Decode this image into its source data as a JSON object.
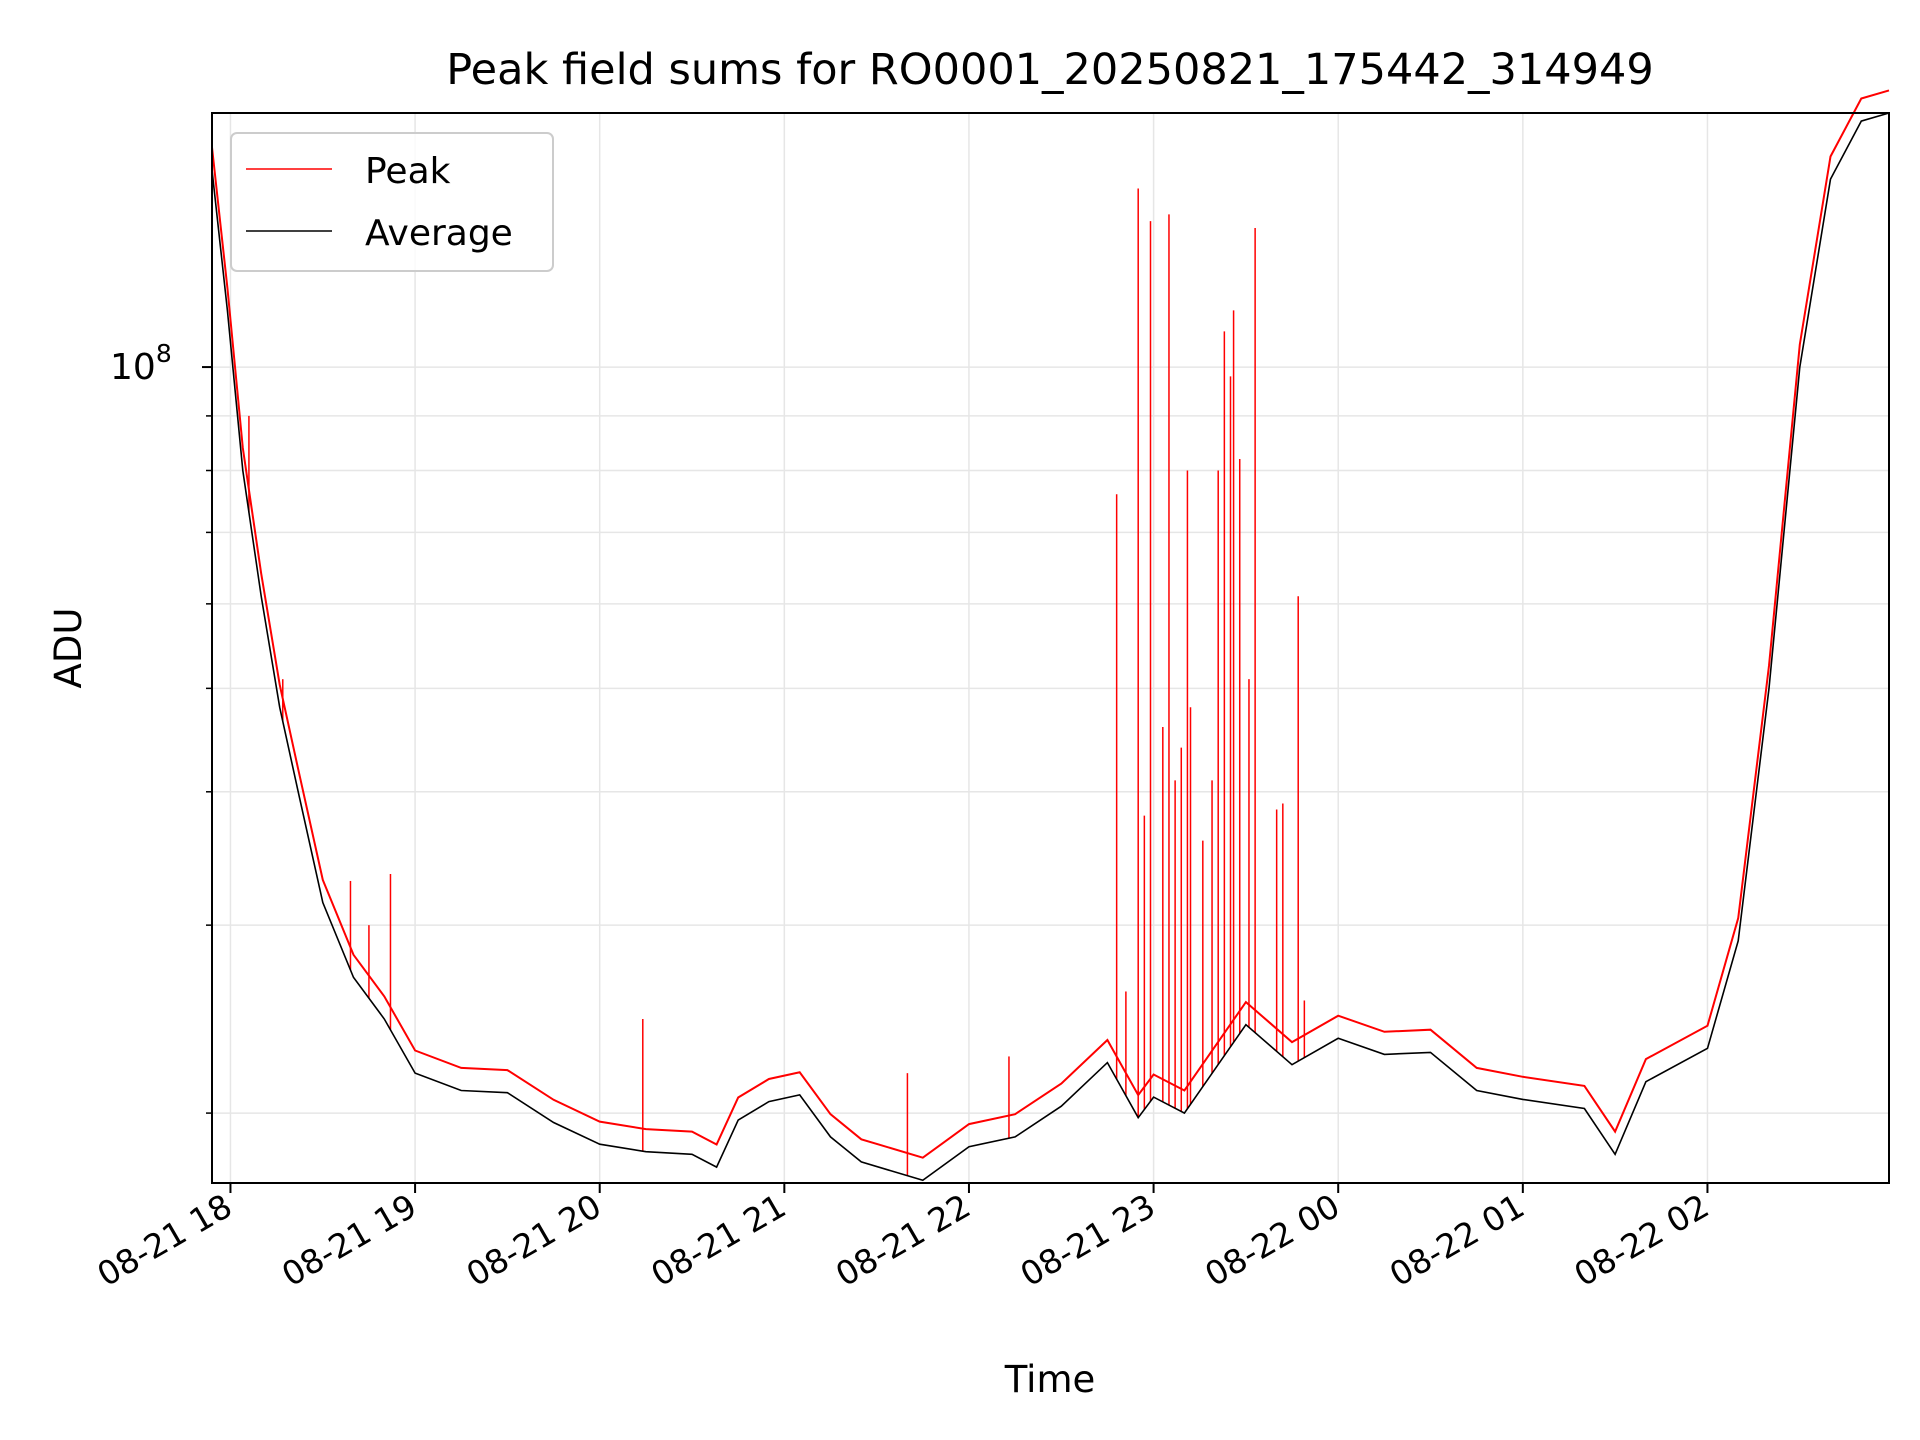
{
  "chart_data": {
    "type": "line",
    "title": "Peak field sums for RO0001_20250821_175442_314949",
    "xlabel": "Time",
    "ylabel": "ADU",
    "y_scale": "log",
    "y_tick_label": {
      "base": "10",
      "exp": "8"
    },
    "xlim": [
      "2025-08-21 17:54",
      "2025-08-22 02:59"
    ],
    "ylim": [
      17200000,
      173000000
    ],
    "x_ticks": [
      {
        "t": "2025-08-21 18:00",
        "label": "08-21 18"
      },
      {
        "t": "2025-08-21 19:00",
        "label": "08-21 19"
      },
      {
        "t": "2025-08-21 20:00",
        "label": "08-21 20"
      },
      {
        "t": "2025-08-21 21:00",
        "label": "08-21 21"
      },
      {
        "t": "2025-08-21 22:00",
        "label": "08-21 22"
      },
      {
        "t": "2025-08-21 23:00",
        "label": "08-21 23"
      },
      {
        "t": "2025-08-22 00:00",
        "label": "08-22 00"
      },
      {
        "t": "2025-08-22 01:00",
        "label": "08-22 01"
      },
      {
        "t": "2025-08-22 02:00",
        "label": "08-22 02"
      }
    ],
    "grid": true,
    "legend_position": "upper-left",
    "series": [
      {
        "name": "Average",
        "color": "#000000",
        "points": [
          [
            "2025-08-21 17:54",
            153000000
          ],
          [
            "2025-08-21 17:59",
            113000000
          ],
          [
            "2025-08-21 18:04",
            80000000
          ],
          [
            "2025-08-21 18:10",
            61000000
          ],
          [
            "2025-08-21 18:16",
            48000000
          ],
          [
            "2025-08-21 18:22",
            40000000
          ],
          [
            "2025-08-21 18:30",
            31500000
          ],
          [
            "2025-08-21 18:40",
            26800000
          ],
          [
            "2025-08-21 18:50",
            24500000
          ],
          [
            "2025-08-21 19:00",
            21800000
          ],
          [
            "2025-08-21 19:15",
            21000000
          ],
          [
            "2025-08-21 19:30",
            20900000
          ],
          [
            "2025-08-21 19:45",
            19600000
          ],
          [
            "2025-08-21 20:00",
            18700000
          ],
          [
            "2025-08-21 20:15",
            18400000
          ],
          [
            "2025-08-21 20:30",
            18300000
          ],
          [
            "2025-08-21 20:38",
            17800000
          ],
          [
            "2025-08-21 20:45",
            19700000
          ],
          [
            "2025-08-21 20:55",
            20500000
          ],
          [
            "2025-08-21 21:05",
            20800000
          ],
          [
            "2025-08-21 21:15",
            19000000
          ],
          [
            "2025-08-21 21:25",
            18000000
          ],
          [
            "2025-08-21 21:45",
            17300000
          ],
          [
            "2025-08-21 22:00",
            18600000
          ],
          [
            "2025-08-21 22:15",
            19000000
          ],
          [
            "2025-08-21 22:30",
            20300000
          ],
          [
            "2025-08-21 22:45",
            22300000
          ],
          [
            "2025-08-21 22:55",
            19800000
          ],
          [
            "2025-08-21 23:00",
            20700000
          ],
          [
            "2025-08-21 23:10",
            20000000
          ],
          [
            "2025-08-21 23:20",
            22000000
          ],
          [
            "2025-08-21 23:30",
            24200000
          ],
          [
            "2025-08-21 23:45",
            22200000
          ],
          [
            "2025-08-22 00:00",
            23500000
          ],
          [
            "2025-08-22 00:15",
            22700000
          ],
          [
            "2025-08-22 00:30",
            22800000
          ],
          [
            "2025-08-22 00:45",
            21000000
          ],
          [
            "2025-08-22 01:00",
            20600000
          ],
          [
            "2025-08-22 01:20",
            20200000
          ],
          [
            "2025-08-22 01:30",
            18300000
          ],
          [
            "2025-08-22 01:40",
            21400000
          ],
          [
            "2025-08-22 02:00",
            23000000
          ],
          [
            "2025-08-22 02:10",
            29000000
          ],
          [
            "2025-08-22 02:20",
            50000000
          ],
          [
            "2025-08-22 02:30",
            100000000
          ],
          [
            "2025-08-22 02:40",
            150000000
          ],
          [
            "2025-08-22 02:50",
            170000000
          ],
          [
            "2025-08-22 02:59",
            173000000
          ]
        ]
      },
      {
        "name": "Peak",
        "color": "#ff0000",
        "spikes": [
          [
            "2025-08-21 18:06",
            90000000
          ],
          [
            "2025-08-21 18:17",
            51000000
          ],
          [
            "2025-08-21 18:39",
            33000000
          ],
          [
            "2025-08-21 18:45",
            30000000
          ],
          [
            "2025-08-21 18:52",
            33500000
          ],
          [
            "2025-08-21 20:14",
            24500000
          ],
          [
            "2025-08-21 21:40",
            21800000
          ],
          [
            "2025-08-21 22:13",
            22600000
          ],
          [
            "2025-08-21 22:48",
            76000000
          ],
          [
            "2025-08-21 22:51",
            26000000
          ],
          [
            "2025-08-21 22:55",
            147000000
          ],
          [
            "2025-08-21 22:57",
            38000000
          ],
          [
            "2025-08-21 22:59",
            137000000
          ],
          [
            "2025-08-21 23:03",
            46000000
          ],
          [
            "2025-08-21 23:05",
            139000000
          ],
          [
            "2025-08-21 23:07",
            41000000
          ],
          [
            "2025-08-21 23:09",
            44000000
          ],
          [
            "2025-08-21 23:11",
            80000000
          ],
          [
            "2025-08-21 23:12",
            48000000
          ],
          [
            "2025-08-21 23:16",
            36000000
          ],
          [
            "2025-08-21 23:19",
            41000000
          ],
          [
            "2025-08-21 23:21",
            80000000
          ],
          [
            "2025-08-21 23:23",
            108000000
          ],
          [
            "2025-08-21 23:25",
            98000000
          ],
          [
            "2025-08-21 23:26",
            113000000
          ],
          [
            "2025-08-21 23:28",
            82000000
          ],
          [
            "2025-08-21 23:31",
            51000000
          ],
          [
            "2025-08-21 23:33",
            135000000
          ],
          [
            "2025-08-21 23:40",
            38500000
          ],
          [
            "2025-08-21 23:42",
            39000000
          ],
          [
            "2025-08-21 23:47",
            61000000
          ],
          [
            "2025-08-21 23:49",
            25500000
          ]
        ]
      }
    ]
  }
}
